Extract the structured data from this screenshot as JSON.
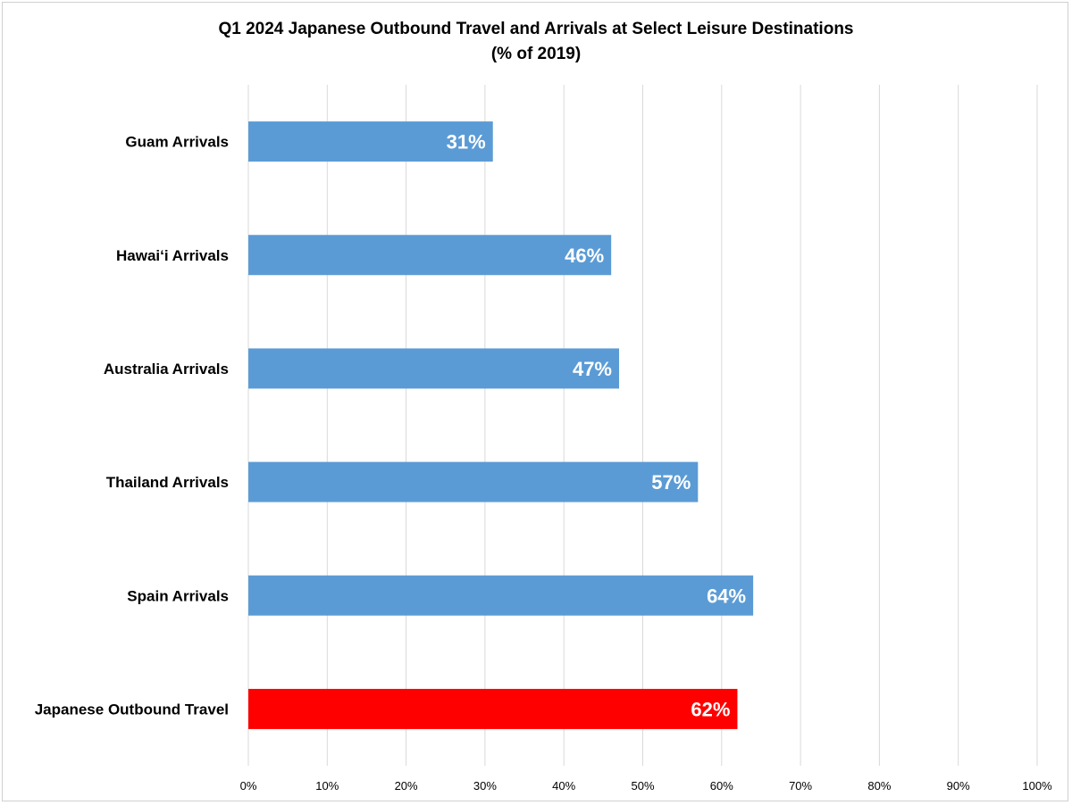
{
  "chart_data": {
    "type": "bar",
    "orientation": "horizontal",
    "title": "Q1 2024 Japanese Outbound Travel and Arrivals at Select Leisure Destinations",
    "subtitle": "(% of 2019)",
    "categories": [
      "Guam Arrivals",
      "Hawai‘i Arrivals",
      "Australia Arrivals",
      "Thailand Arrivals",
      "Spain Arrivals",
      "Japanese Outbound Travel"
    ],
    "values": [
      31,
      46,
      47,
      57,
      64,
      62
    ],
    "data_labels": [
      "31%",
      "46%",
      "47%",
      "57%",
      "64%",
      "62%"
    ],
    "bar_colors": [
      "#5b9bd5",
      "#5b9bd5",
      "#5b9bd5",
      "#5b9bd5",
      "#5b9bd5",
      "#ff0000"
    ],
    "xlim": [
      0,
      100
    ],
    "x_ticks": [
      0,
      10,
      20,
      30,
      40,
      50,
      60,
      70,
      80,
      90,
      100
    ],
    "x_tick_labels": [
      "0%",
      "10%",
      "20%",
      "30%",
      "40%",
      "50%",
      "60%",
      "70%",
      "80%",
      "90%",
      "100%"
    ],
    "grid": "vertical",
    "legend": "none",
    "gridline_color": "#d9d9d9"
  }
}
